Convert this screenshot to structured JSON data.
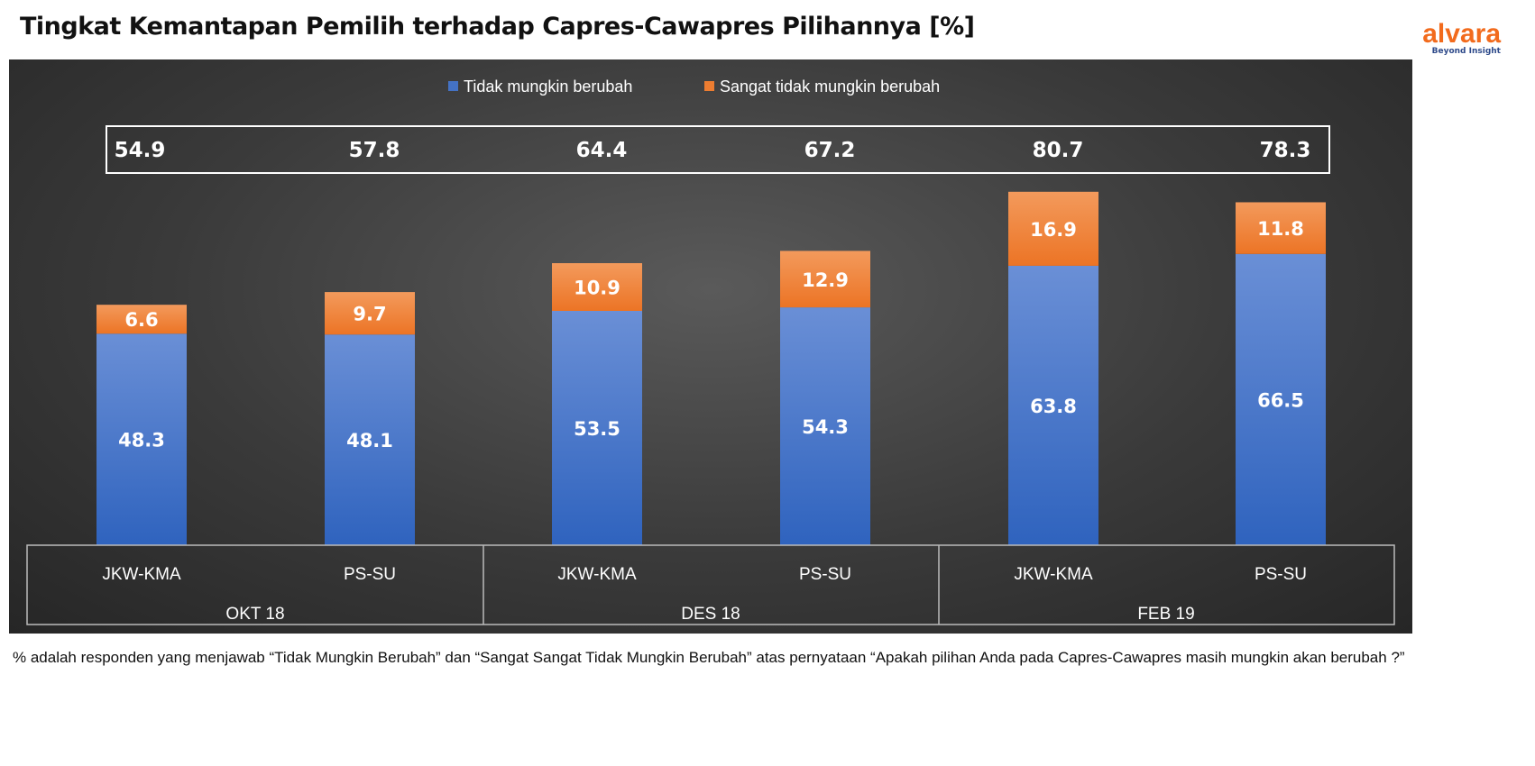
{
  "title": "Tingkat Kemantapan Pemilih terhadap Capres-Cawapres Pilihannya [%]",
  "logo": {
    "name": "alvara",
    "tagline": "Beyond Insight"
  },
  "footnote": "% adalah responden yang menjawab “Tidak Mungkin Berubah” dan “Sangat Sangat Tidak Mungkin Berubah” atas pernyataan “Apakah pilihan Anda pada Capres-Cawapres masih mungkin akan berubah ?”",
  "chart_data": {
    "type": "bar",
    "stacked": true,
    "groups": [
      "OKT 18",
      "DES 18",
      "FEB 19"
    ],
    "categories": [
      "JKW-KMA",
      "PS-SU",
      "JKW-KMA",
      "PS-SU",
      "JKW-KMA",
      "PS-SU"
    ],
    "series": [
      {
        "name": "Tidak mungkin berubah",
        "color": "#4472c4",
        "values": [
          48.3,
          48.1,
          53.5,
          54.3,
          63.8,
          66.5
        ]
      },
      {
        "name": "Sangat tidak mungkin berubah",
        "color": "#ed7d31",
        "values": [
          6.6,
          9.7,
          10.9,
          12.9,
          16.9,
          11.8
        ]
      }
    ],
    "totals": [
      "54.9",
      "57.8",
      "64.4",
      "67.2",
      "80.7",
      "78.3"
    ],
    "legend": "top",
    "grid": false,
    "ylim": [
      0,
      100
    ]
  }
}
